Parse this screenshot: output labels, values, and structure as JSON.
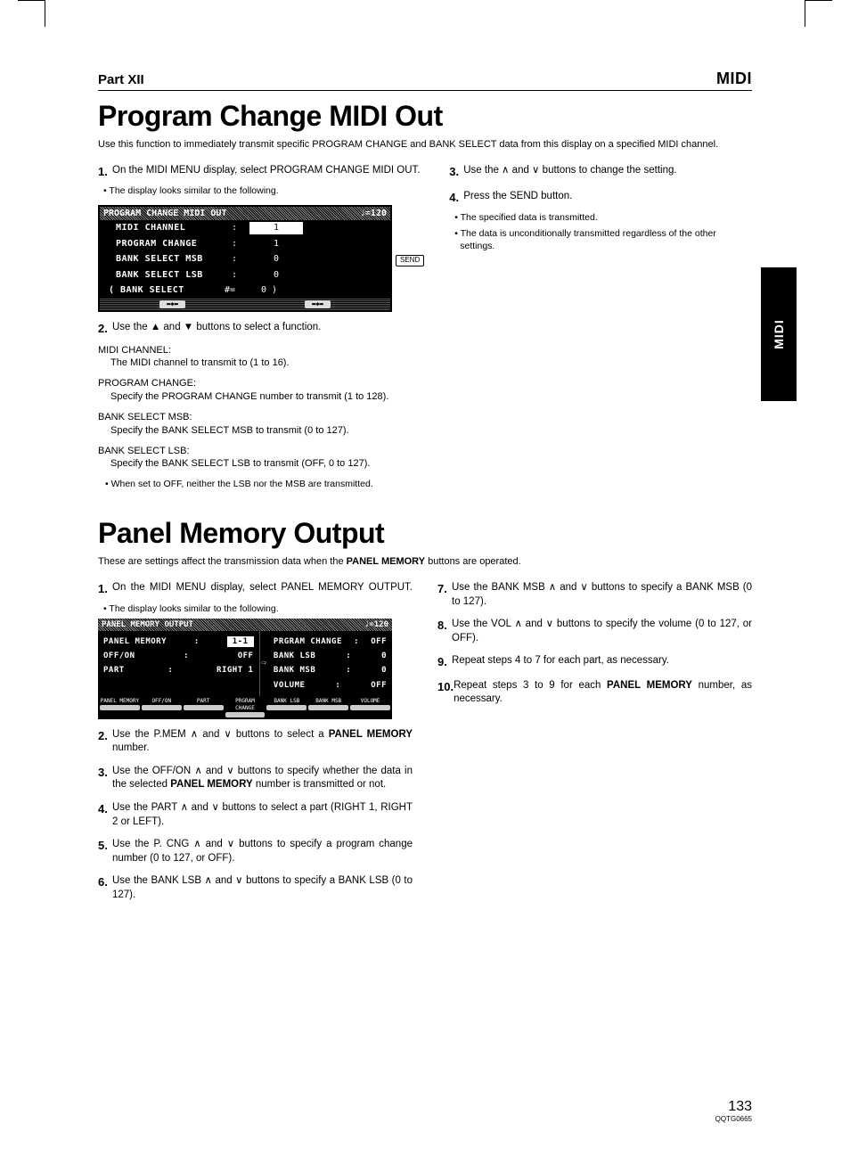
{
  "header": {
    "part": "Part XII",
    "section": "MIDI"
  },
  "side_tab": "MIDI",
  "page_number": "133",
  "doc_code": "QQTG0665",
  "sec1": {
    "title": "Program Change MIDI Out",
    "intro": "Use this function to immediately transmit specific PROGRAM CHANGE and BANK SELECT data from this display on a specified MIDI channel.",
    "step1_num": "1.",
    "step1": "On the MIDI MENU display, select PROGRAM CHANGE MIDI OUT.",
    "step1_bullet": "• The display looks similar to the following.",
    "lcd_title": "PROGRAM CHANGE MIDI OUT",
    "lcd_tempo": "♩=120",
    "lcd_rows": [
      {
        "label": "MIDI CHANNEL",
        "sep": ":",
        "val": "1",
        "selected": true
      },
      {
        "label": "PROGRAM CHANGE",
        "sep": ":",
        "val": "1",
        "selected": false
      },
      {
        "label": "BANK SELECT MSB",
        "sep": ":",
        "val": "0",
        "selected": false
      },
      {
        "label": "BANK SELECT LSB",
        "sep": ":",
        "val": "0",
        "selected": false
      }
    ],
    "lcd_bank_row": {
      "label": "( BANK SELECT",
      "sep": "#=",
      "val": "0 )"
    },
    "send_label": "SEND",
    "step2_num": "2.",
    "step2": "Use the ▲ and ▼ buttons to select a function.",
    "defs": [
      {
        "title": "MIDI CHANNEL:",
        "body": "The MIDI channel to transmit to (1 to 16)."
      },
      {
        "title": "PROGRAM CHANGE:",
        "body": "Specify the PROGRAM CHANGE number to transmit (1 to 128)."
      },
      {
        "title": "BANK SELECT MSB:",
        "body": "Specify the BANK SELECT MSB to transmit (0 to 127)."
      },
      {
        "title": "BANK SELECT LSB:",
        "body": "Specify the BANK SELECT LSB to transmit (OFF, 0 to 127)."
      }
    ],
    "def4_bullet": "• When set to OFF, neither the LSB nor the MSB are transmitted.",
    "step3_num": "3.",
    "step3": "Use the ∧ and ∨ buttons to change the setting.",
    "step4_num": "4.",
    "step4": "Press the SEND button.",
    "step4_b1": "• The specified data is transmitted.",
    "step4_b2": "• The data is unconditionally transmitted regardless of the other settings."
  },
  "sec2": {
    "title": "Panel Memory Output",
    "intro_a": "These are settings affect the transmission data when the ",
    "intro_b": "PANEL MEMORY",
    "intro_c": " buttons are operated.",
    "step1_num": "1.",
    "step1": "On the MIDI MENU display, select PANEL MEMORY OUTPUT.",
    "step1_bullet": "• The display looks similar to the following.",
    "lcd_title": "PANEL MEMORY OUTPUT",
    "lcd_tempo": "♩=120",
    "lcd_left": [
      {
        "l": "PANEL MEMORY",
        "s": ":",
        "v": "1-1",
        "sel": true
      },
      {
        "l": "OFF/ON",
        "s": ":",
        "v": "OFF"
      },
      {
        "l": "PART",
        "s": ":",
        "v": "RIGHT 1"
      }
    ],
    "lcd_right": [
      {
        "l": "PRGRAM CHANGE",
        "s": ":",
        "v": "OFF"
      },
      {
        "l": "BANK LSB",
        "s": ":",
        "v": "0"
      },
      {
        "l": "BANK MSB",
        "s": ":",
        "v": "0"
      },
      {
        "l": "VOLUME",
        "s": ":",
        "v": "OFF"
      }
    ],
    "lcd_footer": [
      "PANEL MEMORY",
      "OFF/ON",
      "PART",
      "PRGRAM CHANGE",
      "BANK LSB",
      "BANK MSB",
      "VOLUME"
    ],
    "step2_num": "2.",
    "step2a": "Use the P.MEM ∧ and ∨ buttons to select a ",
    "step2b": "PANEL MEMORY",
    "step2c": " number.",
    "step3_num": "3.",
    "step3a": "Use the OFF/ON ∧ and ∨ buttons to specify whether the data in the selected ",
    "step3b": "PANEL MEMORY",
    "step3c": " number is transmitted or not.",
    "step4_num": "4.",
    "step4": "Use the PART ∧ and ∨ buttons to select a part (RIGHT 1, RIGHT 2 or LEFT).",
    "step5_num": "5.",
    "step5": "Use the P. CNG ∧ and ∨ buttons to specify a program change number (0 to 127, or OFF).",
    "step6_num": "6.",
    "step6": "Use the BANK LSB ∧ and ∨ buttons to specify a BANK LSB (0 to 127).",
    "step7_num": "7.",
    "step7": "Use the BANK MSB ∧ and ∨ buttons to specify a BANK MSB (0 to 127).",
    "step8_num": "8.",
    "step8": "Use the VOL ∧ and ∨ buttons to specify the volume (0 to 127, or OFF).",
    "step9_num": "9.",
    "step9": "Repeat steps 4 to 7 for each part, as necessary.",
    "step10_num": "10.",
    "step10a": "Repeat steps 3 to 9 for each ",
    "step10b": "PANEL MEMORY",
    "step10c": " number, as necessary."
  }
}
